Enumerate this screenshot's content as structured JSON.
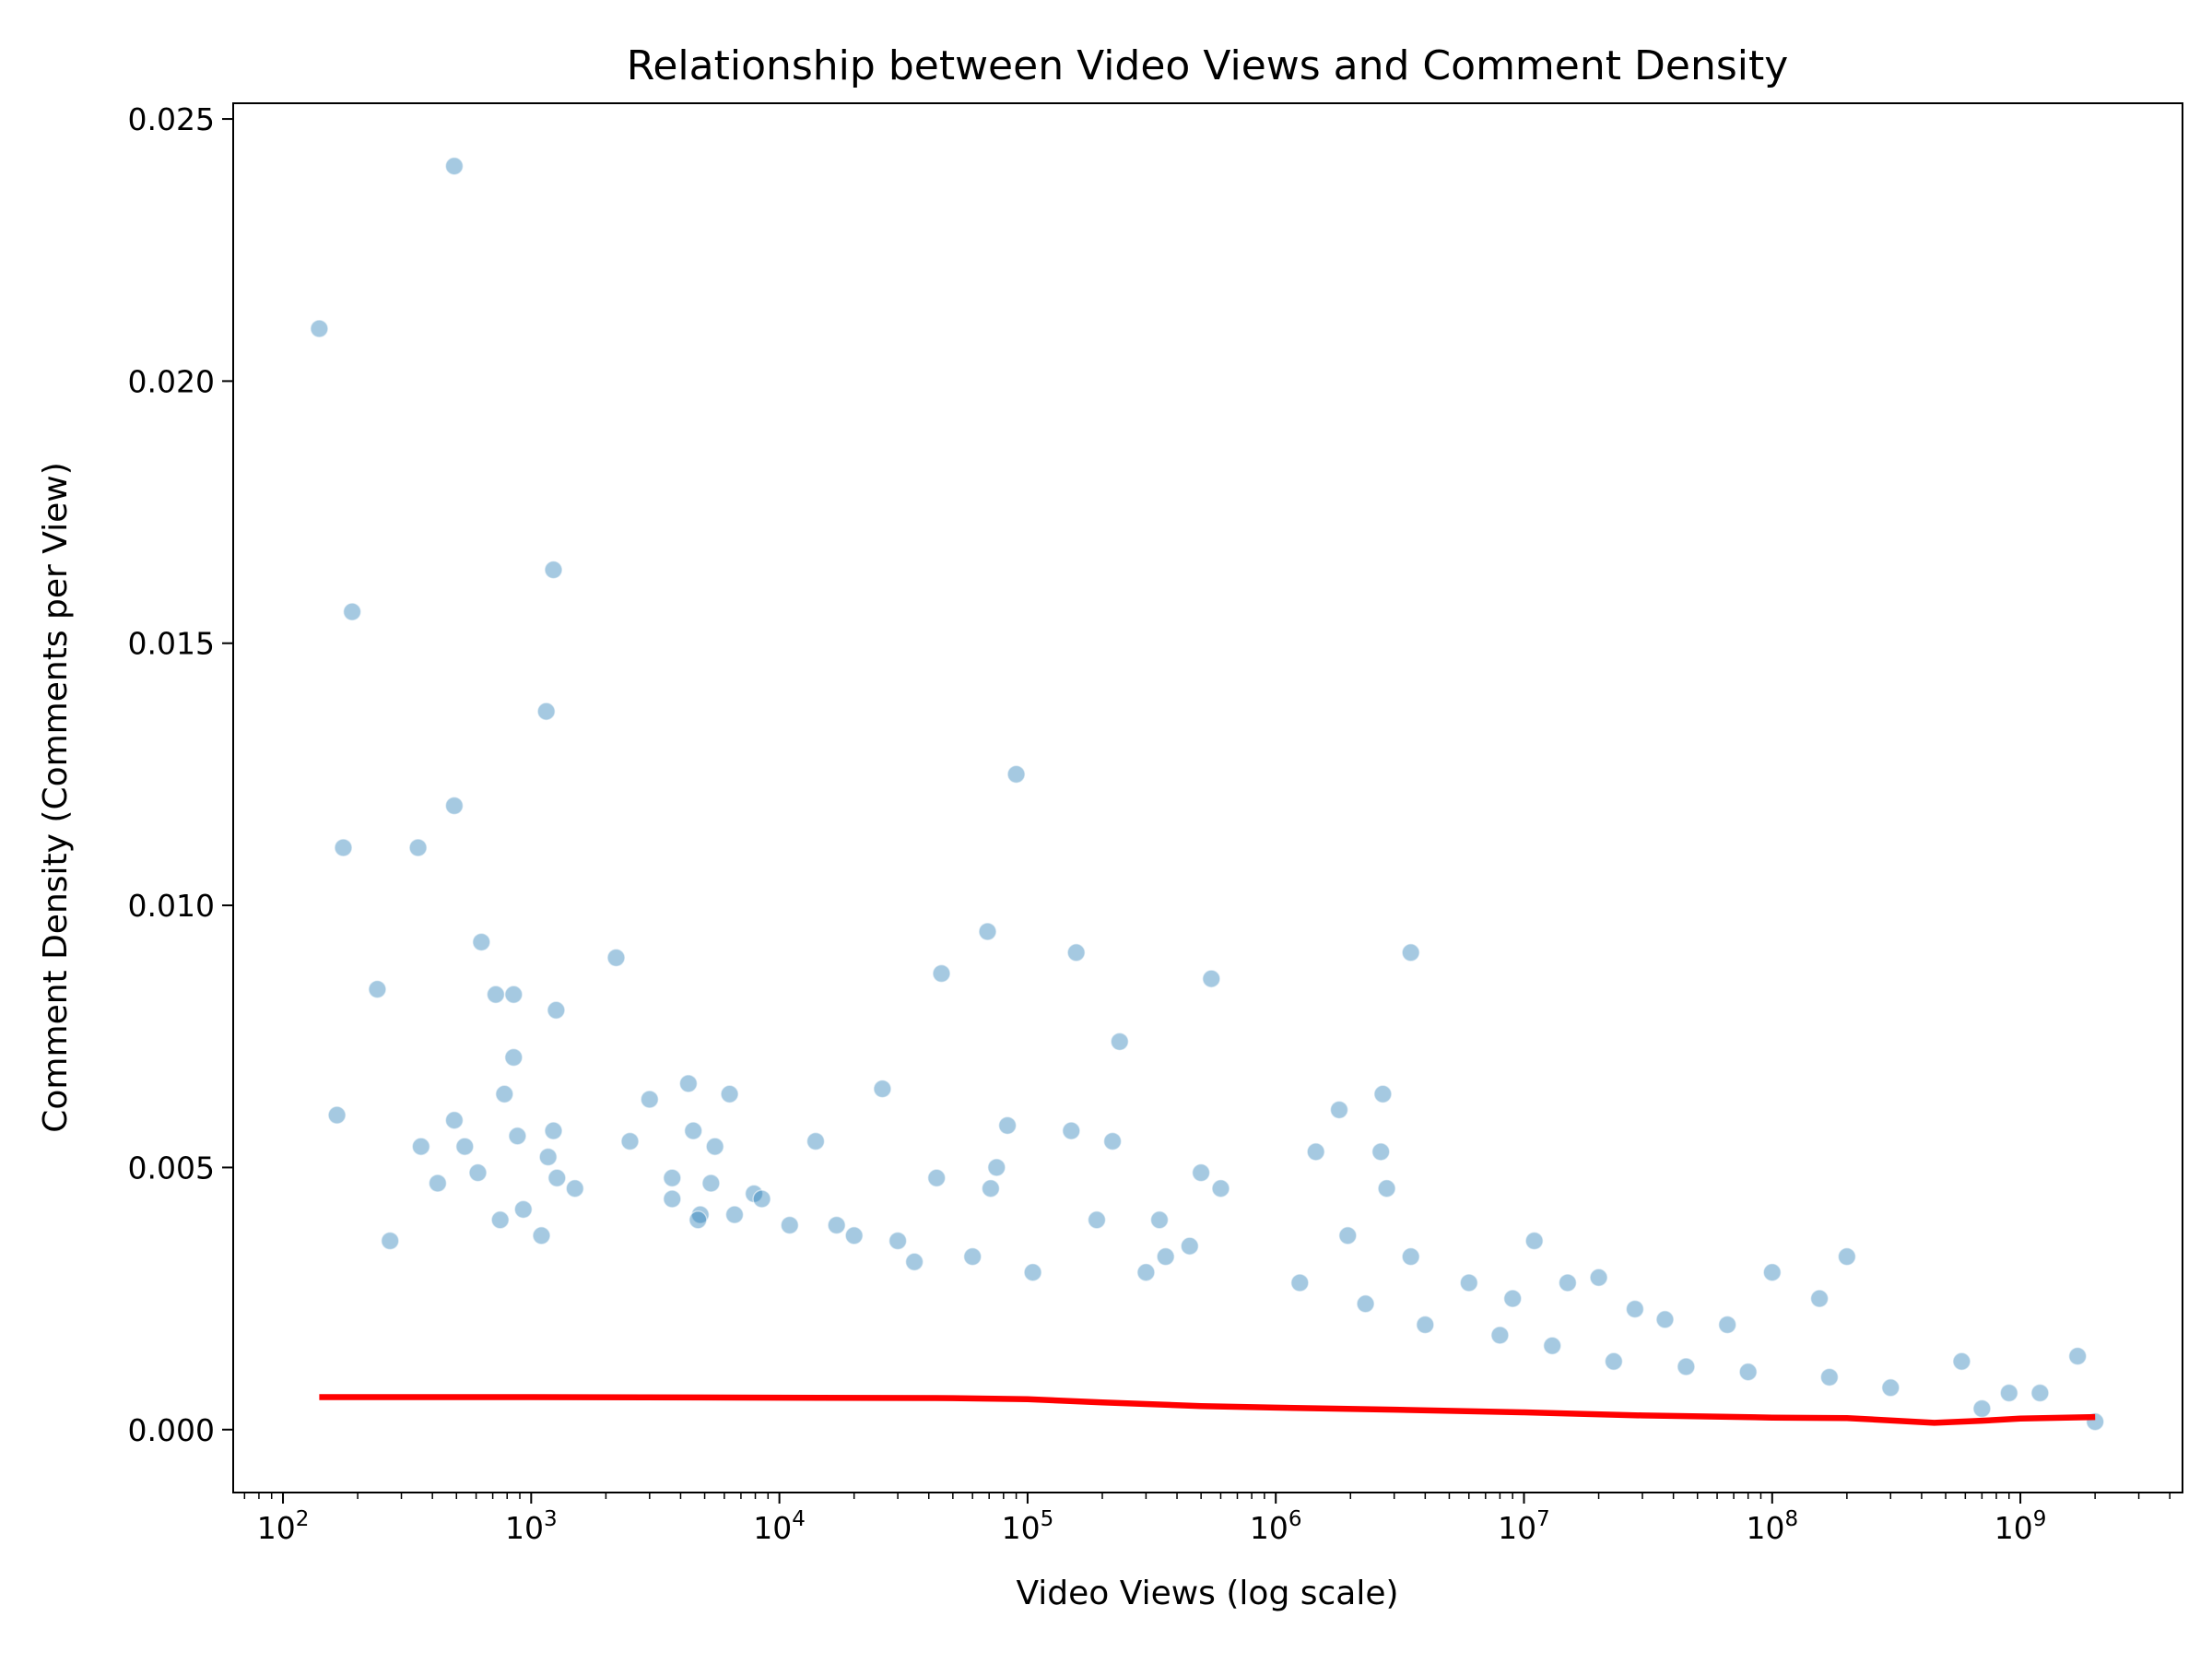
{
  "chart_data": {
    "type": "scatter",
    "title": "Relationship between Video Views and Comment Density",
    "xlabel": "Video Views (log scale)",
    "ylabel": "Comment Density (Comments per View)",
    "xscale": "log",
    "xlim": [
      63,
      4500000000
    ],
    "ylim": [
      -0.0012,
      0.0253
    ],
    "x_ticks": [
      {
        "value": 100,
        "base": "10",
        "exp": "2"
      },
      {
        "value": 1000,
        "base": "10",
        "exp": "3"
      },
      {
        "value": 10000,
        "base": "10",
        "exp": "4"
      },
      {
        "value": 100000,
        "base": "10",
        "exp": "5"
      },
      {
        "value": 1000000,
        "base": "10",
        "exp": "6"
      },
      {
        "value": 10000000,
        "base": "10",
        "exp": "7"
      },
      {
        "value": 100000000,
        "base": "10",
        "exp": "8"
      },
      {
        "value": 1000000000,
        "base": "10",
        "exp": "9"
      }
    ],
    "y_ticks": [
      {
        "value": 0.0,
        "label": "0.000"
      },
      {
        "value": 0.005,
        "label": "0.005"
      },
      {
        "value": 0.01,
        "label": "0.010"
      },
      {
        "value": 0.015,
        "label": "0.015"
      },
      {
        "value": 0.02,
        "label": "0.020"
      },
      {
        "value": 0.025,
        "label": "0.025"
      }
    ],
    "grid": false,
    "colors": {
      "scatter": "#1f77b4",
      "trend": "#ff0000"
    },
    "series": [
      {
        "kind": "scatter",
        "points": [
          [
            140,
            0.021
          ],
          [
            490,
            0.0241
          ],
          [
            190,
            0.0156
          ],
          [
            175,
            0.0111
          ],
          [
            240,
            0.0084
          ],
          [
            165,
            0.006
          ],
          [
            350,
            0.0111
          ],
          [
            490,
            0.0119
          ],
          [
            1230,
            0.0164
          ],
          [
            1150,
            0.0137
          ],
          [
            630,
            0.0093
          ],
          [
            720,
            0.0083
          ],
          [
            850,
            0.0083
          ],
          [
            1260,
            0.008
          ],
          [
            850,
            0.0071
          ],
          [
            780,
            0.0064
          ],
          [
            2200,
            0.009
          ],
          [
            490,
            0.0059
          ],
          [
            360,
            0.0054
          ],
          [
            540,
            0.0054
          ],
          [
            420,
            0.0047
          ],
          [
            610,
            0.0049
          ],
          [
            880,
            0.0056
          ],
          [
            1230,
            0.0057
          ],
          [
            1170,
            0.0052
          ],
          [
            1270,
            0.0048
          ],
          [
            1500,
            0.0046
          ],
          [
            930,
            0.0042
          ],
          [
            750,
            0.004
          ],
          [
            1100,
            0.0037
          ],
          [
            270,
            0.0036
          ],
          [
            3000,
            0.0063
          ],
          [
            4300,
            0.0066
          ],
          [
            6300,
            0.0064
          ],
          [
            2500,
            0.0055
          ],
          [
            4500,
            0.0057
          ],
          [
            5500,
            0.0054
          ],
          [
            3700,
            0.0048
          ],
          [
            5300,
            0.0047
          ],
          [
            7900,
            0.0045
          ],
          [
            4800,
            0.0041
          ],
          [
            6600,
            0.0041
          ],
          [
            14000,
            0.0055
          ],
          [
            26000,
            0.0065
          ],
          [
            43000,
            0.0048
          ],
          [
            45000,
            0.0087
          ],
          [
            69000,
            0.0095
          ],
          [
            90000,
            0.0125
          ],
          [
            83000,
            0.0058
          ],
          [
            75000,
            0.005
          ],
          [
            71000,
            0.0046
          ],
          [
            157000,
            0.0091
          ],
          [
            150000,
            0.0057
          ],
          [
            235000,
            0.0074
          ],
          [
            220000,
            0.0055
          ],
          [
            550000,
            0.0086
          ],
          [
            500000,
            0.0049
          ],
          [
            600000,
            0.0046
          ],
          [
            190000,
            0.004
          ],
          [
            340000,
            0.004
          ],
          [
            3500000,
            0.0091
          ],
          [
            1800000,
            0.0061
          ],
          [
            2700000,
            0.0064
          ],
          [
            2650000,
            0.0053
          ],
          [
            2800000,
            0.0046
          ],
          [
            1450000,
            0.0053
          ],
          [
            1950000,
            0.0037
          ],
          [
            3500000,
            0.0033
          ],
          [
            11000000,
            0.0036
          ],
          [
            20000000,
            0.0029
          ],
          [
            100000000,
            0.003
          ],
          [
            155000000,
            0.0025
          ],
          [
            200000000,
            0.0033
          ],
          [
            1700000000,
            0.0014
          ],
          [
            580000000,
            0.0013
          ],
          [
            66000000,
            0.002
          ],
          [
            37000000,
            0.0021
          ],
          [
            28000000,
            0.0023
          ],
          [
            15000000,
            0.0028
          ],
          [
            9000000,
            0.0025
          ],
          [
            6000000,
            0.0028
          ],
          [
            360000,
            0.0033
          ],
          [
            300000,
            0.003
          ],
          [
            2000000000,
            0.00015
          ],
          [
            1200000000,
            0.0007
          ],
          [
            900000000,
            0.0007
          ],
          [
            20000,
            0.0037
          ],
          [
            30000,
            0.0036
          ],
          [
            17000,
            0.0039
          ],
          [
            11000,
            0.0039
          ],
          [
            8500,
            0.0044
          ],
          [
            3700,
            0.0044
          ],
          [
            4700,
            0.004
          ],
          [
            35000,
            0.0032
          ],
          [
            60000,
            0.0033
          ],
          [
            105000,
            0.003
          ],
          [
            450000,
            0.0035
          ],
          [
            1250000,
            0.0028
          ],
          [
            2300000,
            0.0024
          ],
          [
            4000000,
            0.002
          ],
          [
            8000000,
            0.0018
          ],
          [
            13000000,
            0.0016
          ],
          [
            23000000,
            0.0013
          ],
          [
            45000000,
            0.0012
          ],
          [
            80000000,
            0.0011
          ],
          [
            170000000,
            0.001
          ],
          [
            300000000,
            0.0008
          ],
          [
            700000000,
            0.0004
          ]
        ]
      },
      {
        "kind": "trend",
        "name": "",
        "points": [
          [
            140,
            0.00062
          ],
          [
            1000,
            0.00062
          ],
          [
            10000,
            0.00061
          ],
          [
            50000,
            0.0006
          ],
          [
            100000,
            0.00058
          ],
          [
            200000,
            0.00052
          ],
          [
            500000,
            0.00045
          ],
          [
            1000000,
            0.00042
          ],
          [
            3000000,
            0.00038
          ],
          [
            10000000,
            0.00033
          ],
          [
            30000000,
            0.00027
          ],
          [
            100000000,
            0.00023
          ],
          [
            200000000,
            0.00022
          ],
          [
            450000000,
            0.00013
          ],
          [
            700000000,
            0.00017
          ],
          [
            1000000000,
            0.00021
          ],
          [
            2000000000,
            0.00024
          ]
        ]
      }
    ]
  }
}
